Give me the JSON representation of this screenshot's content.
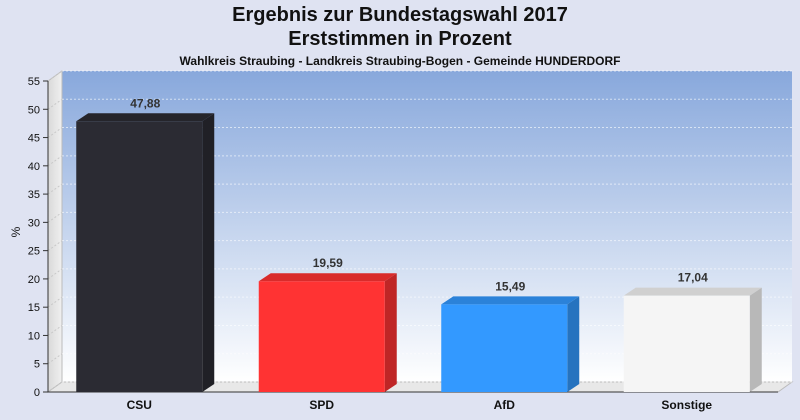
{
  "chart_data": {
    "type": "bar",
    "title": "Ergebnis zur Bundestagswahl 2017",
    "subtitle": "Erststimmen in Prozent",
    "subsubtitle": "Wahlkreis Straubing - Landkreis Straubing-Bogen - Gemeinde HUNDERDORF",
    "ylabel": "%",
    "xlabel": "",
    "ylim": [
      0,
      55
    ],
    "yticks": [
      0,
      5,
      10,
      15,
      20,
      25,
      30,
      35,
      40,
      45,
      50,
      55
    ],
    "categories": [
      "CSU",
      "SPD",
      "AfD",
      "Sonstige"
    ],
    "values": [
      47.88,
      19.59,
      15.49,
      17.04
    ],
    "value_labels": [
      "47,88",
      "19,59",
      "15,49",
      "17,04"
    ],
    "colors": [
      "#2b2b33",
      "#ff3333",
      "#3399ff",
      "#f5f5f5"
    ],
    "grid": true,
    "legend": "none"
  }
}
